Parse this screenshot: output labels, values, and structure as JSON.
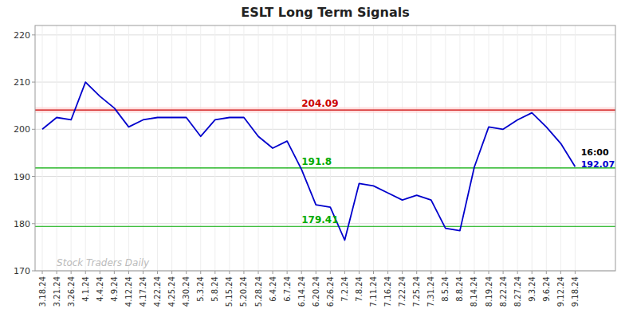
{
  "chart_data": {
    "type": "line",
    "title": "ESLT Long Term Signals",
    "categories": [
      "3.18.24",
      "3.21.24",
      "3.26.24",
      "4.1.24",
      "4.4.24",
      "4.9.24",
      "4.12.24",
      "4.17.24",
      "4.22.24",
      "4.25.24",
      "4.30.24",
      "5.3.24",
      "5.8.24",
      "5.15.24",
      "5.20.24",
      "5.28.24",
      "6.4.24",
      "6.7.24",
      "6.14.24",
      "6.20.24",
      "6.26.24",
      "7.2.24",
      "7.8.24",
      "7.11.24",
      "7.16.24",
      "7.22.24",
      "7.25.24",
      "7.31.24",
      "8.5.24",
      "8.8.24",
      "8.14.24",
      "8.19.24",
      "8.22.24",
      "8.27.24",
      "9.3.24",
      "9.6.24",
      "9.12.24",
      "9.18.24"
    ],
    "values": [
      200.0,
      202.5,
      202.0,
      210.0,
      207.0,
      204.5,
      200.5,
      202.0,
      202.5,
      202.5,
      202.5,
      198.5,
      202.0,
      202.5,
      202.5,
      198.5,
      196.0,
      197.5,
      191.5,
      184.0,
      183.5,
      176.5,
      188.5,
      188.0,
      186.5,
      185.0,
      186.0,
      185.0,
      179.0,
      178.5,
      192.0,
      200.5,
      200.0,
      202.0,
      203.5,
      200.5,
      197.0,
      192.07
    ],
    "color": "#0000cc",
    "ylim": [
      170,
      222
    ],
    "yticks": [
      170,
      180,
      190,
      200,
      210,
      220
    ],
    "grid": true,
    "reference_lines": [
      {
        "value": 204.09,
        "label": "204.09",
        "color": "#cc0000",
        "band": [
          203.49,
          204.69
        ],
        "band_color": "#ffcccc"
      },
      {
        "value": 191.8,
        "label": "191.8",
        "color": "#00aa00"
      },
      {
        "value": 179.41,
        "label": "179.41",
        "color": "#00aa00"
      }
    ],
    "end_label_time": "16:00",
    "end_label_price": "192.07",
    "watermark": "Stock Traders Daily"
  }
}
